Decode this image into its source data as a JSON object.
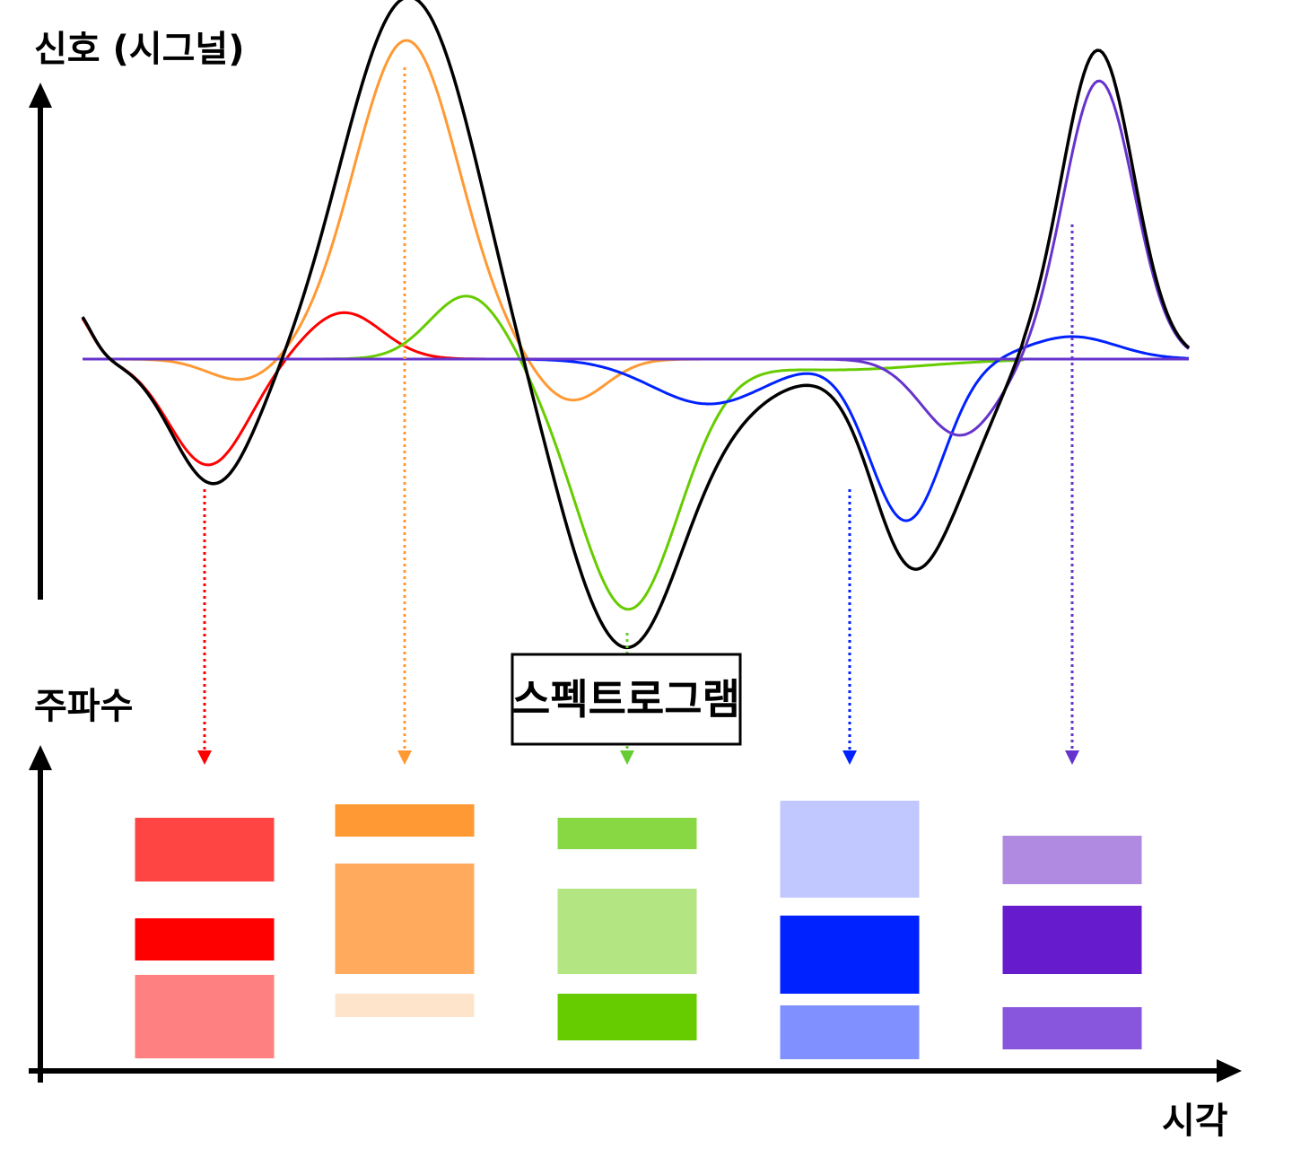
{
  "labels": {
    "signal_axis": "신호 (시그널)",
    "frequency_axis": "주파수",
    "time_axis": "시각",
    "spectrogram": "스펙트로그램"
  },
  "colors": {
    "axis": "#000000",
    "composite": "#000000",
    "red": "#ff0000",
    "orange": "#ff9933",
    "green": "#66cc00",
    "blue": "#0022ff",
    "purple": "#6633cc"
  },
  "components": [
    {
      "key": "red",
      "color": "#ff0000"
    },
    {
      "key": "orange",
      "color": "#ff9933"
    },
    {
      "key": "green",
      "color": "#66cc00"
    },
    {
      "key": "blue",
      "color": "#0022ff"
    },
    {
      "key": "purple",
      "color": "#6633cc"
    }
  ],
  "spectrogram_columns": [
    {
      "key": "red",
      "arrow_color": "#ff0000",
      "bands": [
        {
          "color": "#ff4444"
        },
        {
          "color": "#ff0000"
        },
        {
          "color": "#ff8080"
        }
      ]
    },
    {
      "key": "orange",
      "arrow_color": "#ff9933",
      "bands": [
        {
          "color": "#ff9933"
        },
        {
          "color": "#ffaa5c"
        },
        {
          "color": "#ffe4cc"
        }
      ]
    },
    {
      "key": "green",
      "arrow_color": "#66cc33",
      "bands": [
        {
          "color": "#88d844"
        },
        {
          "color": "#b3e683"
        },
        {
          "color": "#66cc00"
        }
      ]
    },
    {
      "key": "blue",
      "arrow_color": "#0022ff",
      "bands": [
        {
          "color": "#c0c8ff"
        },
        {
          "color": "#0022ff"
        },
        {
          "color": "#8090ff"
        }
      ]
    },
    {
      "key": "purple",
      "arrow_color": "#6633cc",
      "bands": [
        {
          "color": "#b08ae0"
        },
        {
          "color": "#661ccc"
        },
        {
          "color": "#8855dd"
        }
      ]
    }
  ]
}
